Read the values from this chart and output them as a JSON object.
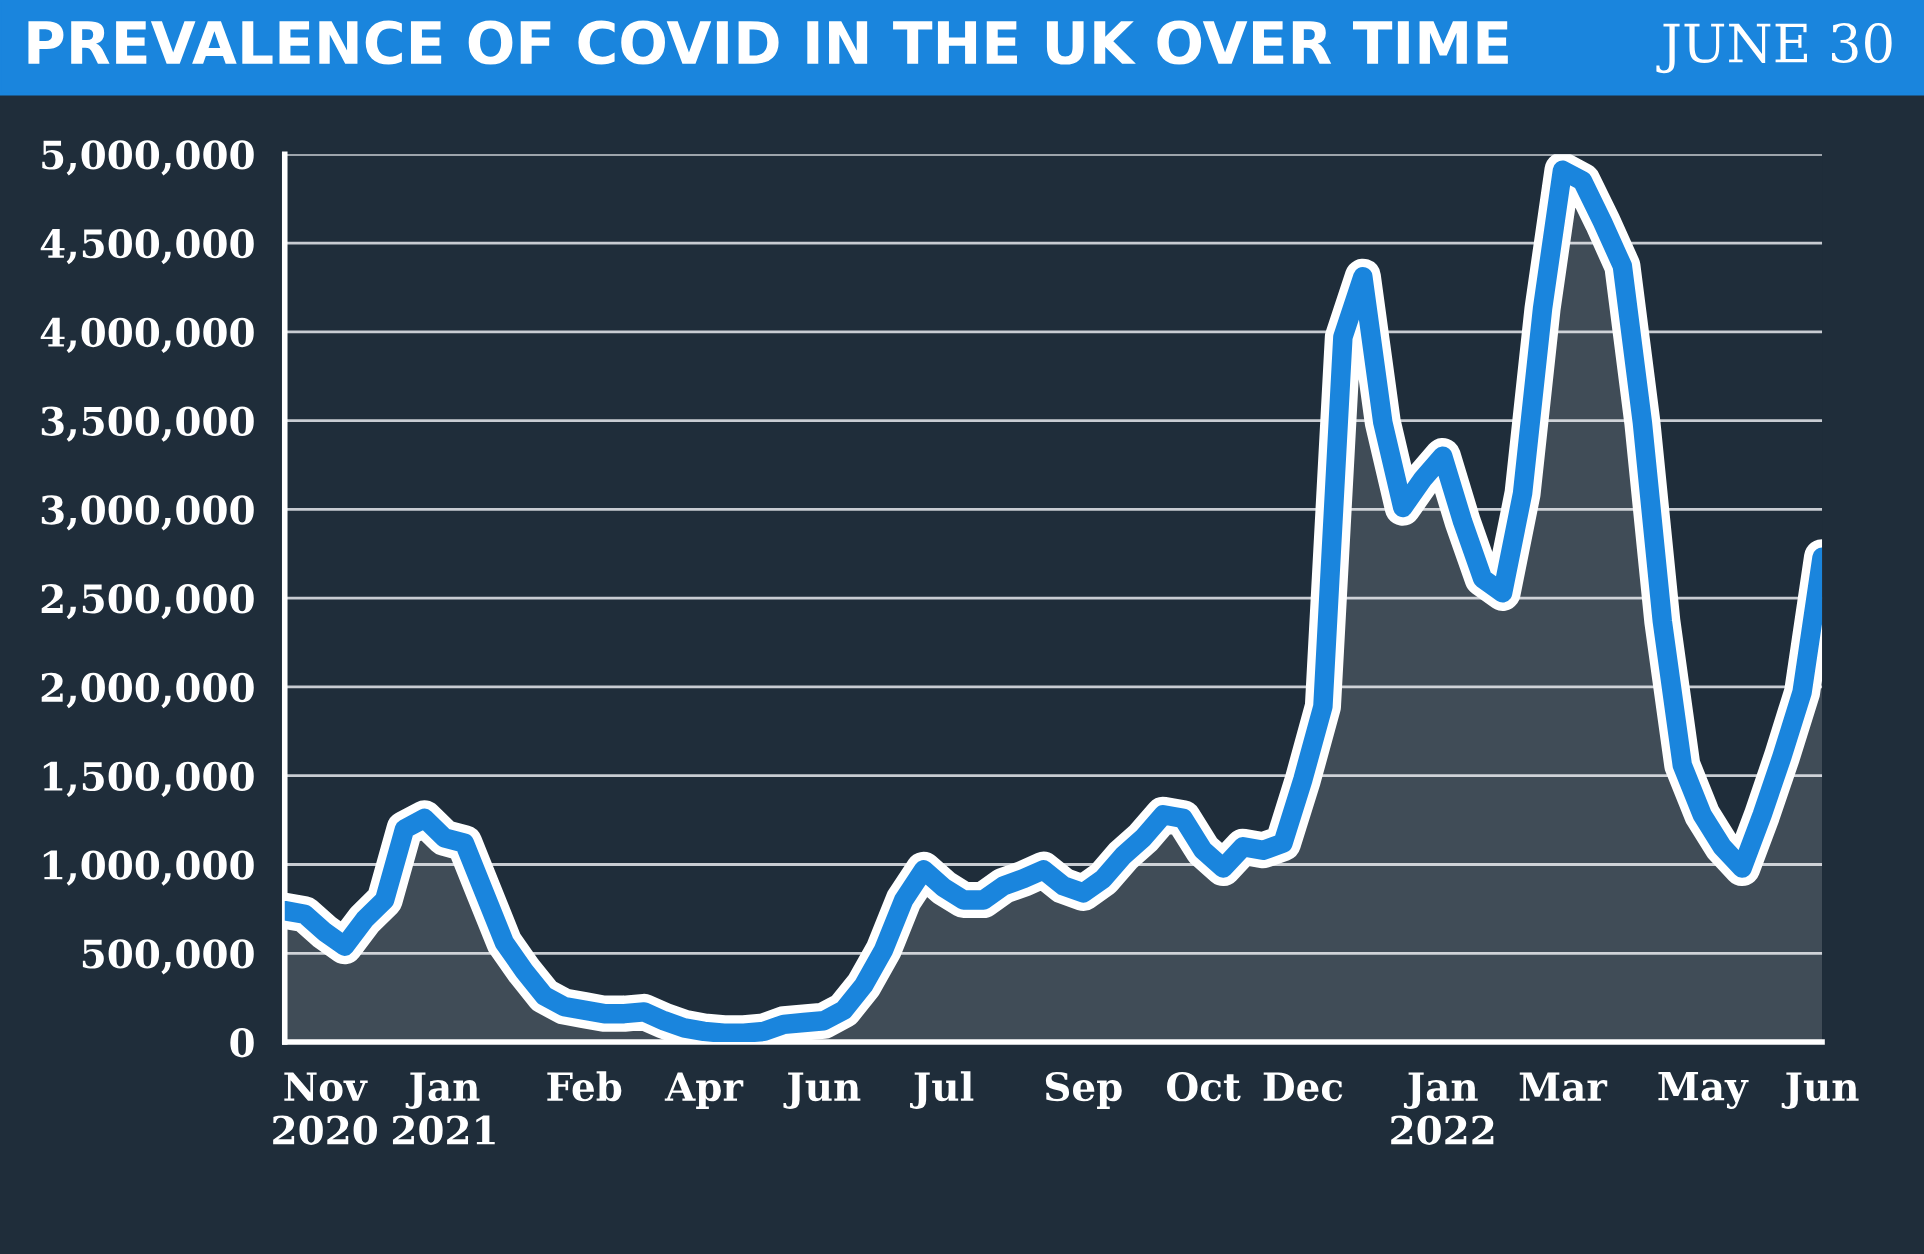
{
  "chart_data": {
    "type": "area",
    "title": "PREVALENCE OF COVID IN THE UK OVER TIME",
    "subtitle": "JUNE 30",
    "categories": [
      null,
      null,
      "Nov\n2020",
      null,
      null,
      null,
      null,
      null,
      "Jan\n2021",
      null,
      null,
      null,
      null,
      null,
      null,
      "Feb",
      null,
      null,
      null,
      null,
      null,
      "Apr",
      null,
      null,
      null,
      null,
      null,
      "Jun",
      null,
      null,
      null,
      null,
      null,
      "Jul",
      null,
      null,
      null,
      null,
      null,
      null,
      "Sep",
      null,
      null,
      null,
      null,
      null,
      "Oct",
      null,
      null,
      null,
      null,
      "Dec",
      null,
      null,
      null,
      null,
      null,
      null,
      "Jan\n2022",
      null,
      null,
      null,
      null,
      null,
      "Mar",
      null,
      null,
      null,
      null,
      null,
      null,
      "May",
      null,
      null,
      null,
      null,
      null,
      "Jun"
    ],
    "series": [
      {
        "color": "#1a85dd",
        "values": [
          740000,
          720000,
          620000,
          540000,
          690000,
          800000,
          1200000,
          1260000,
          1150000,
          1120000,
          840000,
          560000,
          400000,
          260000,
          200000,
          180000,
          160000,
          160000,
          170000,
          120000,
          80000,
          60000,
          50000,
          50000,
          60000,
          100000,
          110000,
          120000,
          180000,
          320000,
          520000,
          800000,
          970000,
          870000,
          800000,
          800000,
          880000,
          920000,
          970000,
          880000,
          840000,
          920000,
          1050000,
          1150000,
          1280000,
          1260000,
          1080000,
          980000,
          1100000,
          1080000,
          1120000,
          1480000,
          1890000,
          3970000,
          4310000,
          3490000,
          3010000,
          3170000,
          3300000,
          2930000,
          2610000,
          2530000,
          3090000,
          4130000,
          4910000,
          4850000,
          4620000,
          4370000,
          3490000,
          2370000,
          1560000,
          1280000,
          1100000,
          980000,
          1280000,
          1610000,
          1970000,
          2730000
        ]
      }
    ],
    "ylim": [
      0,
      5000000
    ],
    "yticks": [
      {
        "value": 0,
        "label": "0"
      },
      {
        "value": 500000,
        "label": "500,000"
      },
      {
        "value": 1000000,
        "label": "1,000,000"
      },
      {
        "value": 1500000,
        "label": "1,500,000"
      },
      {
        "value": 2000000,
        "label": "2,000,000"
      },
      {
        "value": 2500000,
        "label": "2,500,000"
      },
      {
        "value": 3000000,
        "label": "3,000,000"
      },
      {
        "value": 3500000,
        "label": "3,500,000"
      },
      {
        "value": 4000000,
        "label": "4,000,000"
      },
      {
        "value": 4500000,
        "label": "4,500,000"
      },
      {
        "value": 5000000,
        "label": "5,000,000"
      }
    ],
    "grid": "y",
    "marker": "none",
    "line_style": "solid",
    "legend": false
  }
}
